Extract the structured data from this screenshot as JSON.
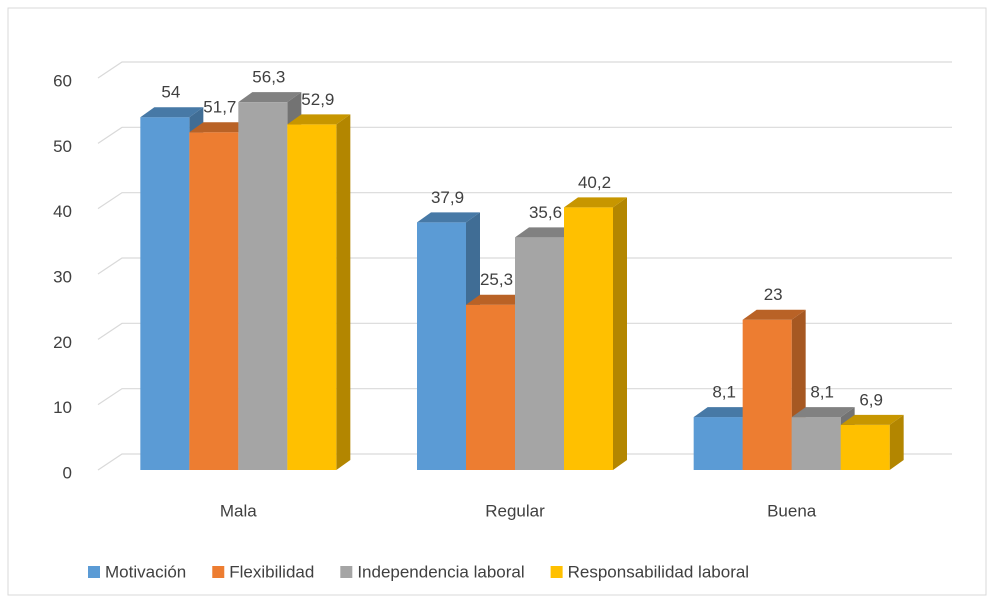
{
  "chart_data": {
    "type": "bar3d",
    "categories": [
      "Mala",
      "Regular",
      "Buena"
    ],
    "series": [
      {
        "name": "Motivación",
        "color": "#5b9bd5",
        "values": [
          54,
          37.9,
          8.1
        ],
        "value_labels": [
          "54",
          "37,9",
          "8,1"
        ]
      },
      {
        "name": "Flexibilidad",
        "color": "#ed7d31",
        "values": [
          51.7,
          25.3,
          23
        ],
        "value_labels": [
          "51,7",
          "25,3",
          "23"
        ]
      },
      {
        "name": "Independencia laboral",
        "color": "#a5a5a5",
        "values": [
          56.3,
          35.6,
          8.1
        ],
        "value_labels": [
          "56,3",
          "35,6",
          "8,1"
        ]
      },
      {
        "name": "Responsabilidad laboral",
        "color": "#ffc000",
        "values": [
          52.9,
          40.2,
          6.9
        ],
        "value_labels": [
          "52,9",
          "40,2",
          "6,9"
        ]
      }
    ],
    "ylim": [
      0,
      60
    ],
    "yticks": [
      0,
      10,
      20,
      30,
      40,
      50,
      60
    ],
    "grid": true,
    "legend": "bottom"
  }
}
